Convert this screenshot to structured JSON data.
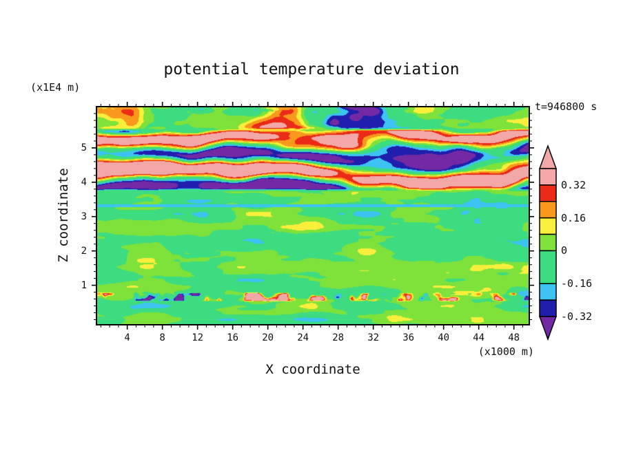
{
  "chart_data": {
    "type": "heatmap",
    "title": "potential temperature deviation",
    "xlabel": "X coordinate",
    "ylabel": "Z coordinate",
    "x_unit_label": "(x1000 m)",
    "y_unit_label": "(x1E4 m)",
    "time_label": "t=946800 s",
    "xlim": [
      0.5,
      49.75
    ],
    "zlim": [
      -0.15,
      6.2
    ],
    "x_ticks": [
      4,
      8,
      12,
      16,
      20,
      24,
      28,
      32,
      36,
      40,
      44,
      48
    ],
    "x_minor_step": 1,
    "y_ticks": [
      1,
      2,
      3,
      4,
      5
    ],
    "y_minor_step": 0.2,
    "colorbar": {
      "position": "right",
      "labels": [
        "0.32",
        "0.16",
        "0",
        "-0.16",
        "-0.32"
      ],
      "label_values": [
        0.32,
        0.16,
        0,
        -0.16,
        -0.32
      ],
      "bands": [
        {
          "min": 0.4,
          "max": 0.48,
          "color": "#F2A8A6",
          "shape": "tip-up"
        },
        {
          "min": 0.32,
          "max": 0.4,
          "color": "#F2A8A6"
        },
        {
          "min": 0.24,
          "max": 0.32,
          "color": "#EB2A18"
        },
        {
          "min": 0.16,
          "max": 0.24,
          "color": "#F8991D"
        },
        {
          "min": 0.08,
          "max": 0.16,
          "color": "#F9EF3A"
        },
        {
          "min": 0.0,
          "max": 0.08,
          "color": "#7FE23B"
        },
        {
          "min": -0.16,
          "max": 0.0,
          "color": "#3DDC80"
        },
        {
          "min": -0.24,
          "max": -0.16,
          "color": "#3CC3F2"
        },
        {
          "min": -0.32,
          "max": -0.24,
          "color": "#201FAD"
        },
        {
          "min": -0.4,
          "max": -0.32,
          "color": "#7229A3",
          "shape": "tip-down"
        }
      ]
    },
    "field": {
      "description": "Vertical cross-section of potential temperature deviation. Near-zero (mottled green) over most of the domain; strong alternating warm (pink/red/orange) and cold (purple/navy/cyan) layered wave-breaking anomalies between z=3.7 and z=5.6 (x1E4 m); patchy strong anomalies near the domain top (warm left, cold right); a thin layer of intense small-scale anomalies near z=0.65; a thin cool line across the domain at z=3.3.",
      "seed": 11,
      "background": {
        "amplitude": 0.105,
        "bias": -0.015,
        "x_freq": 0.16,
        "z_freq": 2.6
      },
      "wave_layer": {
        "z_min": 3.72,
        "z_max": 5.58,
        "band_period": 0.95,
        "band_phase": 3.74,
        "band_amp": 0.38,
        "noise_amp": 0.3,
        "phase_wobble": 2.6,
        "bias": 0.03
      },
      "top_layer": {
        "z_min": 5.5,
        "z_max": 6.3,
        "noise_amp": 0.45,
        "tilt_left": 0.22,
        "tilt_right": -0.3
      },
      "bottom_layer": {
        "z_min": 0.52,
        "z_max": 0.8,
        "amplitude": 0.62
      },
      "thin_line": {
        "z": 3.32,
        "half_width": 0.035,
        "value": -0.18
      }
    }
  },
  "colors": {
    "frame": "#000000",
    "text": "#111111",
    "background": "#FFFFFF"
  }
}
